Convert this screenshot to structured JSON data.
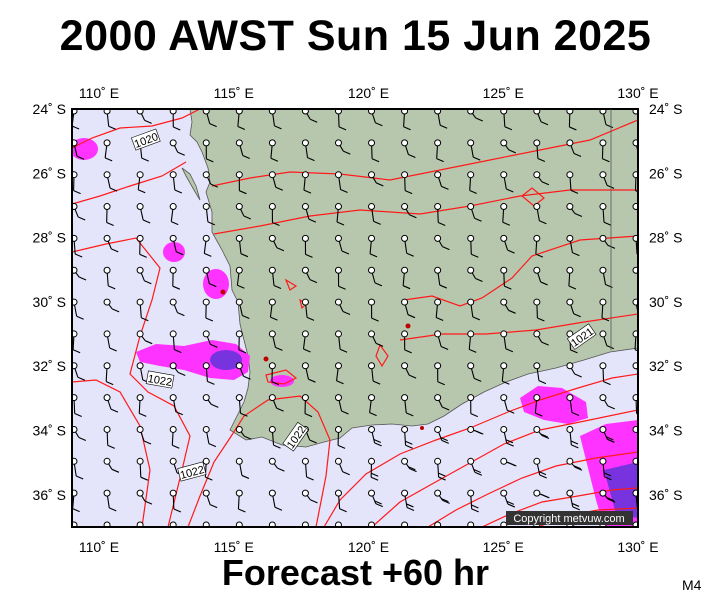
{
  "title": "2000 AWST Sun 15 Jun 2025",
  "footer": "Forecast +60 hr",
  "model_id": "M4",
  "copyright": "Copyright metvuw.com",
  "isobar_labels": [
    "1020",
    "1022",
    "1022",
    "1022",
    "1021"
  ],
  "colors": {
    "ocean": "#e4e4fa",
    "land": "#b7c7ae",
    "isobar": "#ff1a1a",
    "rain_light": "#ff33ff",
    "rain_heavy": "#7733dd"
  },
  "map": {
    "lon_range": [
      109,
      130
    ],
    "lat_range": [
      -37,
      -24
    ],
    "lon_ticks": [
      {
        "value": 110,
        "label": "110˚ E"
      },
      {
        "value": 115,
        "label": "115˚ E"
      },
      {
        "value": 120,
        "label": "120˚ E"
      },
      {
        "value": 125,
        "label": "125˚ E"
      },
      {
        "value": 130,
        "label": "130˚ E"
      }
    ],
    "lat_ticks": [
      {
        "value": -24,
        "label": "24˚ S"
      },
      {
        "value": -26,
        "label": "26˚ S"
      },
      {
        "value": -28,
        "label": "28˚ S"
      },
      {
        "value": -30,
        "label": "30˚ S"
      },
      {
        "value": -32,
        "label": "32˚ S"
      },
      {
        "value": -34,
        "label": "34˚ S"
      },
      {
        "value": -36,
        "label": "36˚ S"
      }
    ]
  }
}
